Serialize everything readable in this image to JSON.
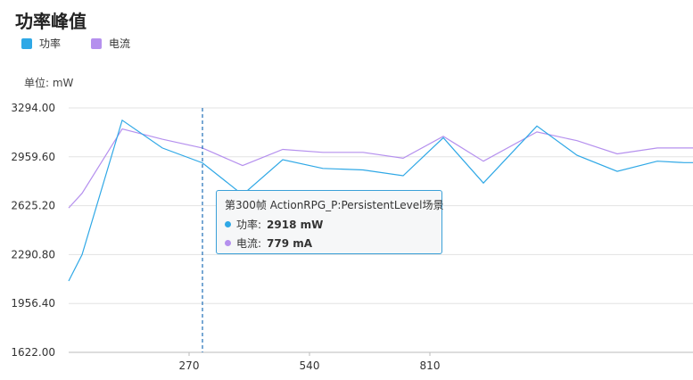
{
  "page": {
    "title": "功率峰值",
    "unit_label": "单位: mW"
  },
  "colors": {
    "power": "#2fa8e6",
    "current": "#b590ee",
    "grid": "#e3e3e3",
    "crosshair": "#1f6fb8"
  },
  "tooltip": {
    "title": "第300帧 ActionRPG_P:PersistentLevel场景",
    "rows": [
      {
        "label": "功率:",
        "value": "2918 mW"
      },
      {
        "label": "电流:",
        "value": "779 mA"
      }
    ]
  },
  "chart_data": {
    "type": "line",
    "title": "功率峰值",
    "ylabel": "单位: mW",
    "ylim": [
      1622.0,
      3294.0
    ],
    "xlim": [
      0,
      1400
    ],
    "y_ticks": [
      "3294.00",
      "2959.60",
      "2625.20",
      "2290.80",
      "1956.40",
      "1622.00"
    ],
    "x_ticks": [
      270,
      540,
      810
    ],
    "x_tick_labels": [
      "270",
      "540",
      "810"
    ],
    "crosshair_x": 300,
    "grid": true,
    "legend_position": "top-left",
    "series": [
      {
        "name": "功率",
        "x": [
          0,
          30,
          120,
          210,
          300,
          390,
          480,
          570,
          660,
          750,
          840,
          930,
          1050,
          1140,
          1230,
          1320,
          1380,
          1400
        ],
        "values": [
          2110,
          2290,
          3210,
          3020,
          2918,
          2700,
          2940,
          2880,
          2870,
          2830,
          3090,
          2780,
          3170,
          2970,
          2860,
          2930,
          2920,
          2920
        ]
      },
      {
        "name": "电流",
        "x": [
          0,
          30,
          120,
          210,
          300,
          390,
          480,
          570,
          660,
          750,
          840,
          930,
          1050,
          1140,
          1230,
          1320,
          1380,
          1400
        ],
        "values": [
          2610,
          2710,
          3150,
          3080,
          3020,
          2900,
          3010,
          2990,
          2990,
          2950,
          3100,
          2930,
          3130,
          3070,
          2980,
          3020,
          3020,
          3020
        ]
      }
    ]
  }
}
